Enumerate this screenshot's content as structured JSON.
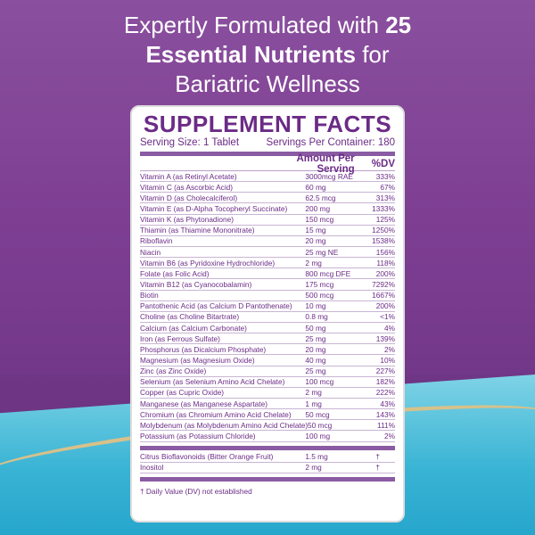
{
  "headline": {
    "line1": "Expertly Formulated with ",
    "line1_bold": "25",
    "line2_bold": "Essential Nutrients",
    "line2": " for",
    "line3": "Bariatric Wellness"
  },
  "panel": {
    "title": "SUPPLEMENT FACTS",
    "serving_size": "Serving Size: 1 Tablet",
    "servings_per_container": "Servings Per Container: 180",
    "col_amount": "Amount Per Serving",
    "col_dv": "%DV",
    "rows": [
      [
        "Vitamin A (as Retinyl Acetate)",
        "3000mcg RAE",
        "333%"
      ],
      [
        "Vitamin C (as Ascorbic Acid)",
        "60 mg",
        "67%"
      ],
      [
        "Vitamin D (as Cholecalciferol)",
        "62.5 mcg",
        "313%"
      ],
      [
        "Vitamin E (as D-Alpha Tocopheryl Succinate)",
        "200 mg",
        "1333%"
      ],
      [
        "Vitamin K (as Phytonadione)",
        "150 mcg",
        "125%"
      ],
      [
        "Thiamin (as Thiamine Mononitrate)",
        "15 mg",
        "1250%"
      ],
      [
        "Riboflavin",
        "20 mg",
        "1538%"
      ],
      [
        "Niacin",
        "25 mg NE",
        "156%"
      ],
      [
        "Vitamin B6 (as Pyridoxine Hydrochloride)",
        "2 mg",
        "118%"
      ],
      [
        "Folate (as Folic Acid)",
        "800 mcg DFE",
        "200%"
      ],
      [
        "Vitamin B12 (as Cyanocobalamin)",
        "175 mcg",
        "7292%"
      ],
      [
        "Biotin",
        "500 mcg",
        "1667%"
      ],
      [
        "Pantothenic Acid (as Calcium D Pantothenate)",
        "10 mg",
        "200%"
      ],
      [
        "Choline (as Choline Bitartrate)",
        "0.8 mg",
        "<1%"
      ],
      [
        "Calcium (as Calcium Carbonate)",
        "50 mg",
        "4%"
      ],
      [
        "Iron (as Ferrous Sulfate)",
        "25 mg",
        "139%"
      ],
      [
        "Phosphorus (as Dicalcium Phosphate)",
        "20 mg",
        "2%"
      ],
      [
        "Magnesium (as Magnesium Oxide)",
        "40 mg",
        "10%"
      ],
      [
        "Zinc (as Zinc Oxide)",
        "25 mg",
        "227%"
      ],
      [
        "Selenium (as Selenium Amino Acid Chelate)",
        "100 mcg",
        "182%"
      ],
      [
        "Copper (as Cupric Oxide)",
        "2 mg",
        "222%"
      ],
      [
        "Manganese (as Manganese Aspartate)",
        "1 mg",
        "43%"
      ],
      [
        "Chromium (as Chromium Amino Acid Chelate)",
        "50 mcg",
        "143%"
      ],
      [
        "Molybdenum (as Molybdenum Amino Acid Chelate)",
        "50 mcg",
        "111%"
      ],
      [
        "Potassium (as Potassium Chloride)",
        "100 mg",
        "2%"
      ]
    ],
    "other_rows": [
      [
        "Citrus Bioflavonoids (Bitter Orange Fruit)",
        "1.5 mg",
        "†"
      ],
      [
        "Inositol",
        "2 mg",
        "†"
      ]
    ],
    "footnote": "† Daily Value (DV) not established"
  },
  "colors": {
    "purple": "#6b2b86",
    "background_top": "#7e3f93",
    "background_bottom": "#38b3d4",
    "accent_gold": "#d7c18a"
  }
}
